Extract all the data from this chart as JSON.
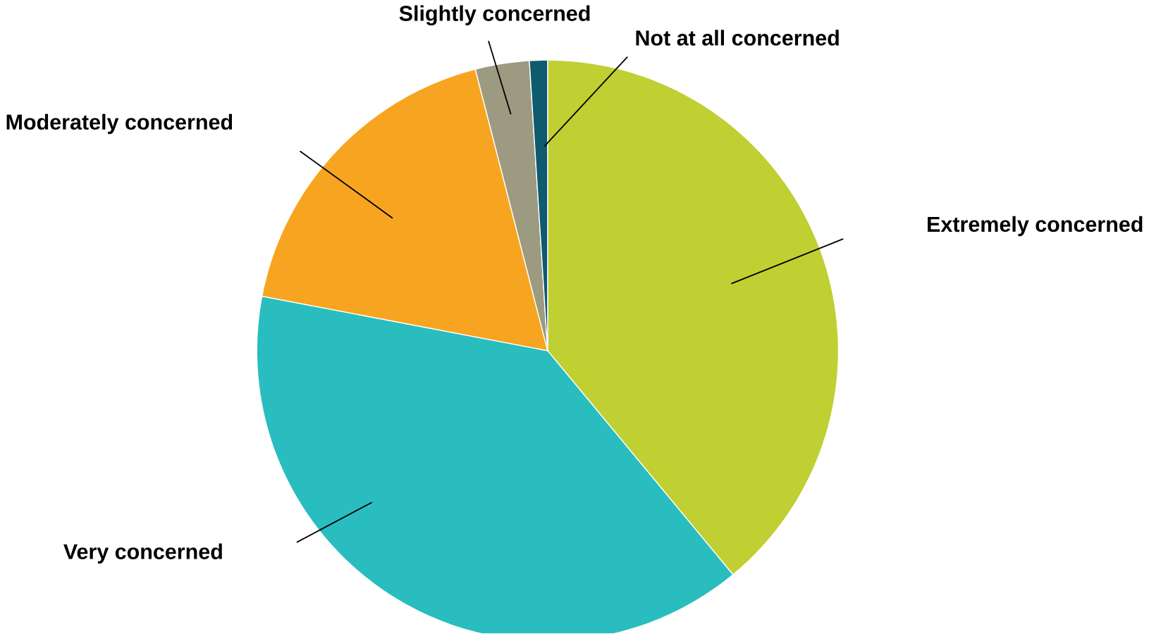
{
  "chart_data": {
    "type": "pie",
    "categories": [
      "Extremely concerned",
      "Very concerned",
      "Moderately concerned",
      "Slightly concerned",
      "Not at all concerned"
    ],
    "values": [
      39,
      39,
      18,
      3,
      1
    ],
    "colors": [
      "#c0cf32",
      "#29bdbf",
      "#f7a520",
      "#9c9a80",
      "#0e5a6e"
    ]
  }
}
